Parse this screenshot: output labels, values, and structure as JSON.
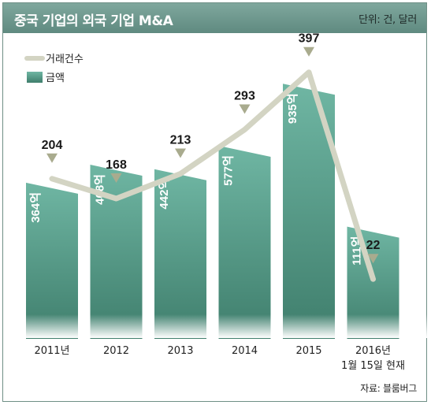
{
  "header": {
    "title": "중국 기업의 외국 기업 M&A",
    "unit": "단위: 건, 달러"
  },
  "source": "자료: 블룸버그",
  "colors": {
    "header": "#6f988e",
    "bar_top": "#6fb6a3",
    "bar_bottom": "#3f7e6c",
    "line": "#d3d4c3",
    "marker": "#a9ab8e"
  },
  "chart_data": {
    "type": "bar+line",
    "categories": [
      "2011년",
      "2012",
      "2013",
      "2014",
      "2015",
      "2016년"
    ],
    "category_sublabels": [
      "",
      "",
      "",
      "",
      "",
      "1월  15일  현재"
    ],
    "series": [
      {
        "name": "거래건수",
        "type": "line",
        "values": [
          204,
          168,
          213,
          293,
          397,
          22
        ],
        "labels": [
          "204",
          "168",
          "213",
          "293",
          "397",
          "22"
        ]
      },
      {
        "name": "금액",
        "type": "bar",
        "values": [
          364,
          468,
          442,
          577,
          935,
          111
        ],
        "labels": [
          "364억",
          "468억",
          "442억",
          "577억",
          "935억",
          "111억"
        ]
      }
    ],
    "legend": {
      "placement": "top-left",
      "items": [
        {
          "name": "거래건수",
          "icon": "line-swatch"
        },
        {
          "name": "금액",
          "icon": "bar-swatch"
        }
      ]
    },
    "axes_visible": false,
    "grid": false
  }
}
